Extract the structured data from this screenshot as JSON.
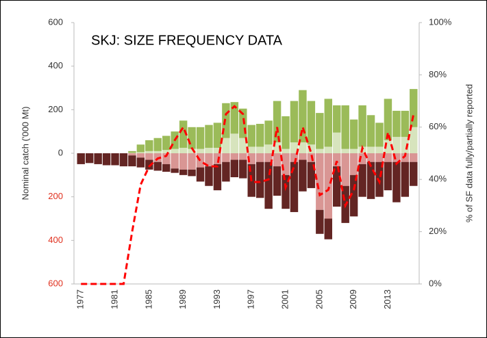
{
  "chart_data": {
    "type": "bar",
    "title": "SKJ: SIZE FREQUENCY DATA",
    "y_label": "Nominal catch ('000 Mt)",
    "y2_label": "% of SF data fully/partially reported",
    "categories": [
      "1977",
      null,
      null,
      null,
      "1981",
      null,
      null,
      null,
      "1985",
      null,
      null,
      null,
      "1989",
      null,
      null,
      null,
      "1993",
      null,
      null,
      null,
      "1997",
      null,
      null,
      null,
      "2001",
      null,
      null,
      null,
      "2005",
      null,
      null,
      null,
      "2009",
      null,
      null,
      null,
      "2013",
      null,
      null,
      null
    ],
    "series": [
      {
        "color": "#d7e4bd",
        "values": [
          0,
          0,
          0,
          0,
          0,
          0,
          2,
          5,
          10,
          10,
          15,
          20,
          25,
          20,
          20,
          25,
          25,
          70,
          90,
          70,
          30,
          30,
          40,
          50,
          20,
          50,
          50,
          40,
          20,
          30,
          95,
          20,
          20,
          30,
          30,
          30,
          60,
          75,
          75,
          120
        ]
      },
      {
        "color": "#9bbb59",
        "values": [
          0,
          0,
          0,
          0,
          0,
          0,
          8,
          35,
          50,
          60,
          65,
          80,
          125,
          100,
          100,
          105,
          115,
          160,
          145,
          135,
          100,
          105,
          110,
          190,
          150,
          190,
          240,
          200,
          165,
          220,
          125,
          200,
          135,
          190,
          145,
          110,
          190,
          120,
          120,
          175
        ]
      },
      {
        "color": "#d99694",
        "values": [
          0,
          0,
          0,
          0,
          0,
          0,
          -10,
          -20,
          -30,
          -40,
          -50,
          -70,
          -75,
          -75,
          -65,
          -60,
          -50,
          -40,
          -30,
          -30,
          -50,
          -40,
          -40,
          -60,
          -100,
          -40,
          -30,
          -40,
          -260,
          -300,
          -60,
          -150,
          -100,
          -50,
          -40,
          -40,
          -40,
          -40,
          -40,
          -40
        ]
      },
      {
        "color": "#632523",
        "values": [
          -50,
          -45,
          -50,
          -55,
          -55,
          -60,
          -50,
          -45,
          -45,
          -40,
          -35,
          -20,
          -25,
          -30,
          -65,
          -90,
          -120,
          -90,
          -80,
          -85,
          -150,
          -165,
          -215,
          -135,
          -155,
          -230,
          -145,
          -120,
          -110,
          -95,
          -185,
          -170,
          -190,
          -150,
          -170,
          -160,
          -130,
          -185,
          -160,
          -110
        ]
      },
      {
        "type": "line",
        "axis": "y2",
        "color": "#ff0000",
        "values": [
          0,
          0,
          0,
          0,
          0,
          0,
          20,
          38,
          45,
          48,
          49,
          55,
          60,
          52,
          47,
          45,
          45,
          65,
          68,
          65,
          39,
          39,
          40,
          60,
          37,
          45,
          60,
          50,
          34,
          36,
          47,
          30,
          36,
          52,
          45,
          39,
          58,
          46,
          49,
          65
        ]
      }
    ],
    "ylim": [
      -600,
      600
    ],
    "yticks": [
      {
        "value": -600,
        "label": "600"
      },
      {
        "value": -400,
        "label": "400"
      },
      {
        "value": -200,
        "label": "200"
      },
      0,
      200,
      400,
      600
    ],
    "y2lim": [
      0,
      100
    ],
    "y2ticks": [
      {
        "value": 0,
        "label": "0%"
      },
      {
        "value": 20,
        "label": "20%"
      },
      {
        "value": 40,
        "label": "40%"
      },
      {
        "value": 60,
        "label": "60%"
      },
      {
        "value": 80,
        "label": "80%"
      },
      {
        "value": 100,
        "label": "100%"
      }
    ]
  }
}
